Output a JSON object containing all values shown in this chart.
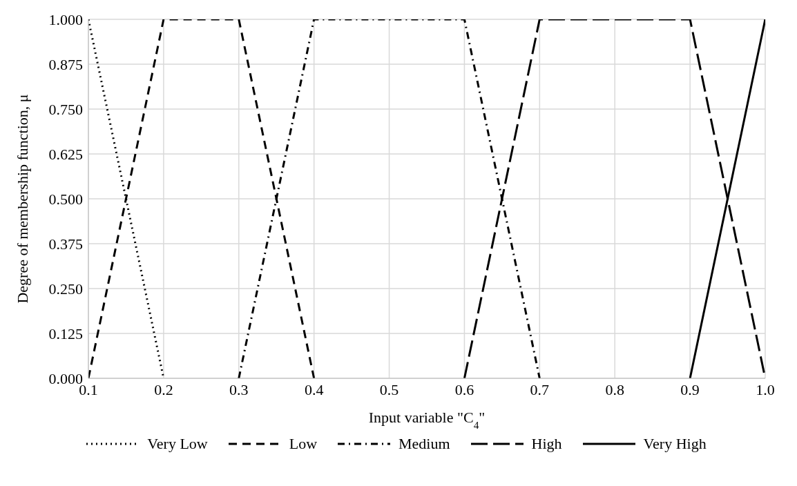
{
  "chart_data": {
    "type": "line",
    "xlabel": "Input variable \"C$_{4}$\"",
    "ylabel": "Degree of membership function, μ",
    "xlim": [
      0.1,
      1.0
    ],
    "xticks": [
      0.1,
      0.2,
      0.3,
      0.4,
      0.5,
      0.6,
      0.7,
      0.8,
      0.9,
      {
        "value": 1.0,
        "label": "1.0"
      }
    ],
    "ylim": [
      0,
      1
    ],
    "yticks": [
      {
        "value": 0,
        "label": "0.000"
      },
      {
        "value": 0.125,
        "label": "0.125"
      },
      {
        "value": 0.25,
        "label": "0.250"
      },
      {
        "value": 0.375,
        "label": "0.375"
      },
      {
        "value": 0.5,
        "label": "0.500"
      },
      {
        "value": 0.625,
        "label": "0.625"
      },
      {
        "value": 0.75,
        "label": "0.750"
      },
      {
        "value": 0.875,
        "label": "0.875"
      },
      {
        "value": 1,
        "label": "1.000"
      }
    ],
    "grid": true,
    "legend": "bottom",
    "marker": "none",
    "series": [
      {
        "name": "Very Low",
        "color": "#000000",
        "line_style": "dotted",
        "x": [
          0.1,
          0.2
        ],
        "values": [
          1,
          0
        ]
      },
      {
        "name": "Low",
        "color": "#000000",
        "line_style": "dashed",
        "x": [
          0.1,
          0.2,
          0.3,
          0.4
        ],
        "values": [
          0,
          1,
          1,
          0
        ]
      },
      {
        "name": "Medium",
        "color": "#000000",
        "line_style": "dashdot",
        "x": [
          0.3,
          0.4,
          0.6,
          0.7
        ],
        "values": [
          0,
          1,
          1,
          0
        ]
      },
      {
        "name": "High",
        "color": "#000000",
        "line_style": "longdash",
        "x": [
          0.6,
          0.7,
          0.9,
          1.0
        ],
        "values": [
          0,
          1,
          1,
          0
        ]
      },
      {
        "name": "Very High",
        "color": "#000000",
        "line_style": "solid",
        "x": [
          0.9,
          1.0
        ],
        "values": [
          0,
          1
        ]
      }
    ]
  }
}
